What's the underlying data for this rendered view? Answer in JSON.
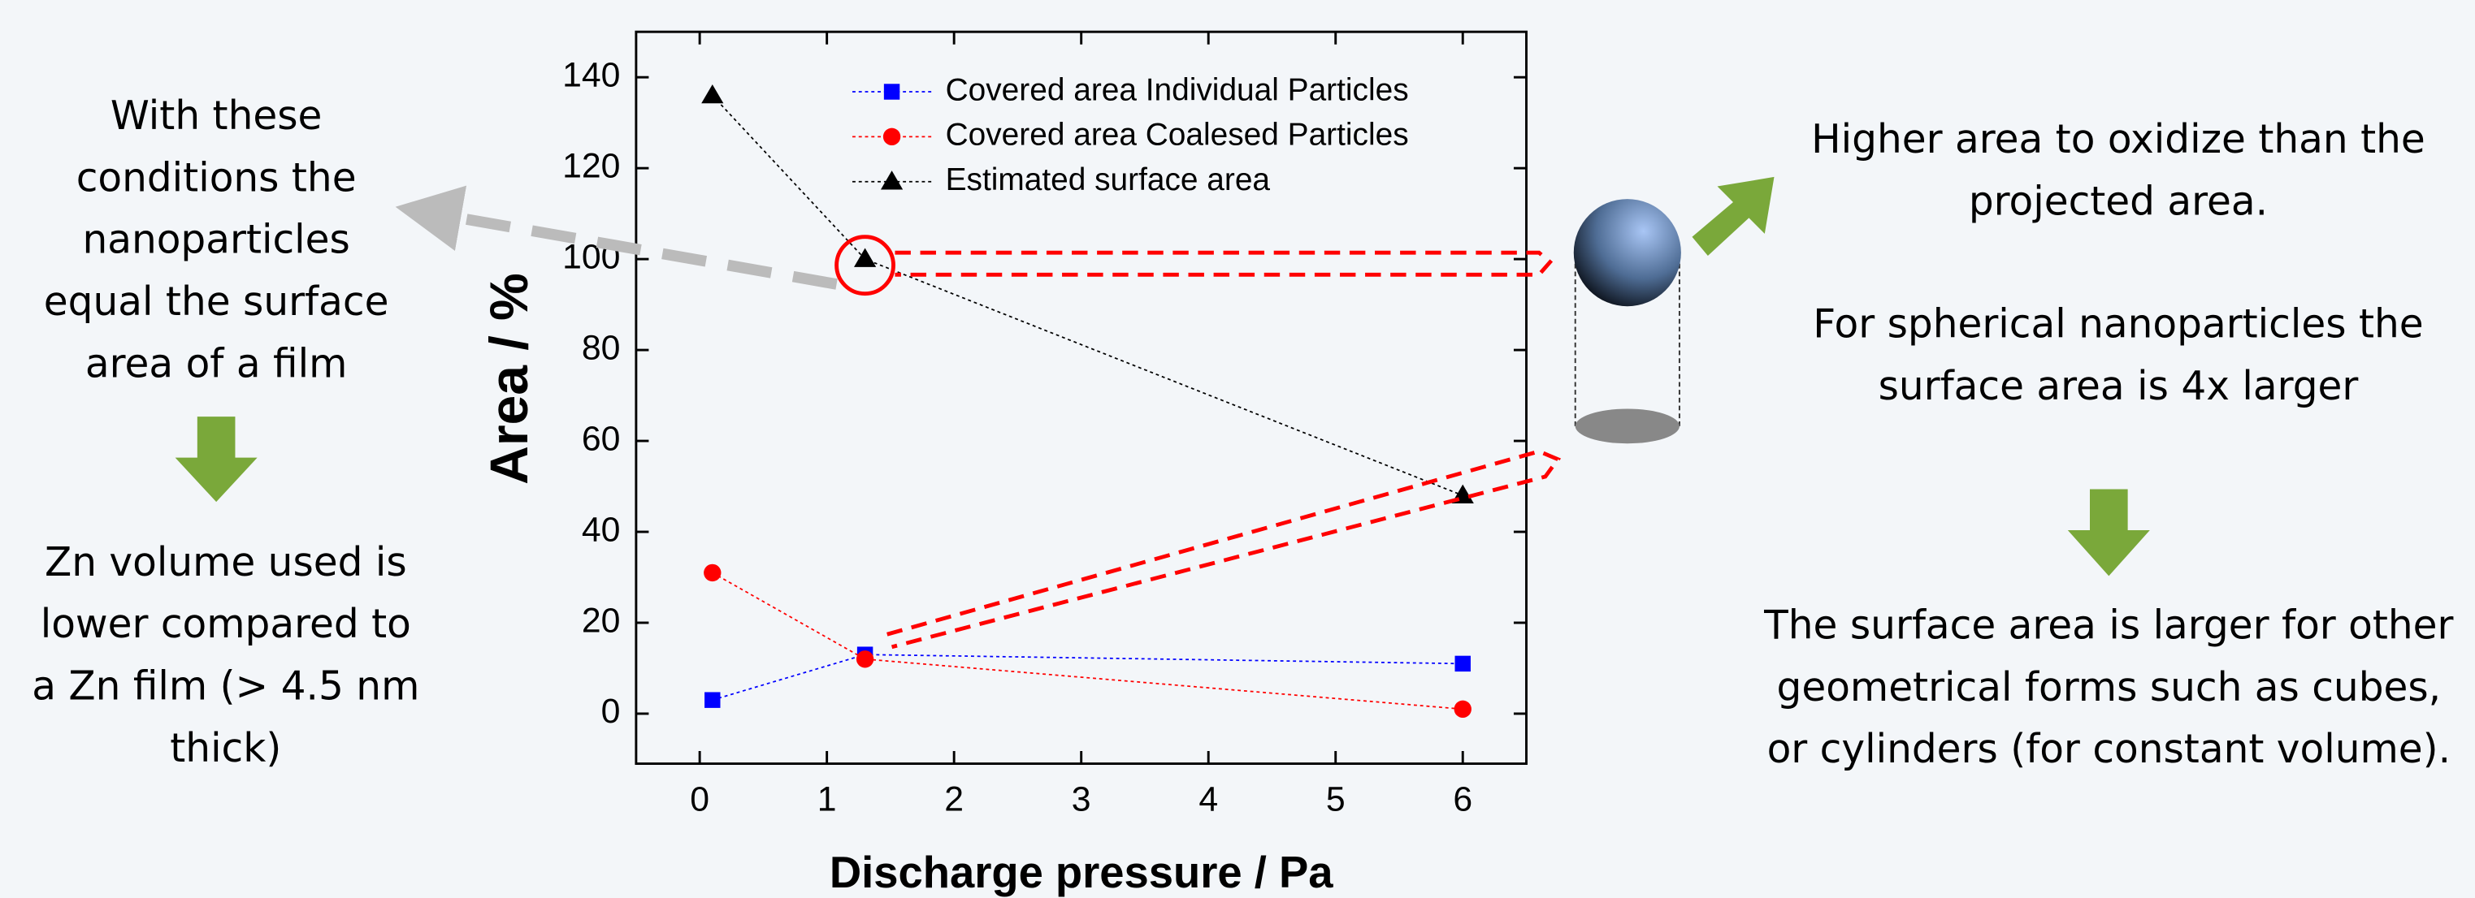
{
  "chart_data": {
    "type": "line",
    "x_label": "Discharge pressure / Pa",
    "y_label": "Area / %",
    "x": [
      0.1,
      1.3,
      6
    ],
    "series": [
      {
        "name": "Covered area Individual Particles",
        "color": "#0000ff",
        "marker": "square",
        "values": [
          3,
          13,
          11
        ]
      },
      {
        "name": "Covered area Coalesed Particles",
        "color": "#ff0000",
        "marker": "circle",
        "values": [
          31,
          12,
          1
        ]
      },
      {
        "name": "Estimated surface area",
        "color": "#000000",
        "marker": "triangle",
        "values": [
          136,
          100,
          48
        ]
      }
    ],
    "xlim": [
      -0.5,
      6.5
    ],
    "xticks": [
      0,
      1,
      2,
      3,
      4,
      5,
      6
    ],
    "ylim": [
      -11,
      150
    ],
    "yticks": [
      0,
      20,
      40,
      60,
      80,
      100,
      120,
      140
    ],
    "legend": "upper right",
    "annotations": {
      "left_top": [
        "With these",
        "conditions the",
        "nanoparticles",
        "equal the surface",
        "area of a film"
      ],
      "left_bottom": [
        "Zn volume used is",
        "lower compared to",
        "a Zn film (> 4.5 nm",
        "thick)"
      ],
      "right_top": [
        "Higher area to oxidize than the",
        "projected area."
      ],
      "right_middle": [
        "For spherical nanoparticles the",
        "surface area is 4x larger"
      ],
      "right_bottom": [
        "The surface area is larger for other",
        "geometrical forms such as cubes,",
        "or cylinders (for constant volume)."
      ]
    }
  }
}
